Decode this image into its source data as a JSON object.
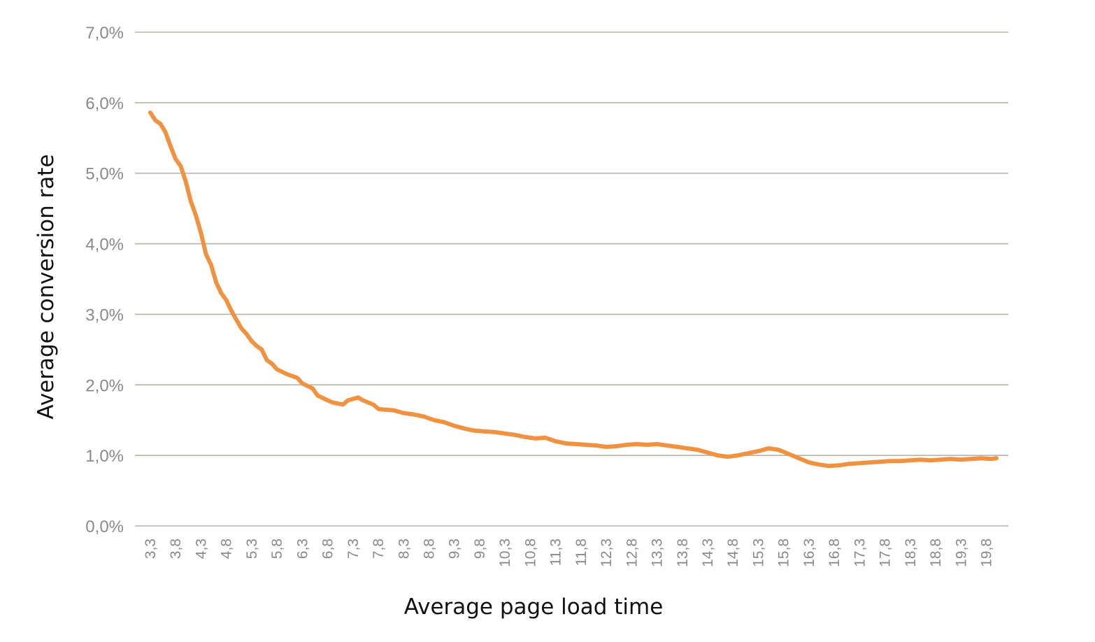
{
  "chart_data": {
    "type": "line",
    "xlabel": "Average page load time",
    "ylabel": "Average conversion rate",
    "ylim": [
      0,
      7
    ],
    "yticks": [
      "0,0%",
      "1,0%",
      "2,0%",
      "3,0%",
      "4,0%",
      "5,0%",
      "6,0%",
      "7,0%"
    ],
    "xticks": [
      "3,3",
      "3,8",
      "4,3",
      "4,8",
      "5,3",
      "5,8",
      "6,3",
      "6,8",
      "7,3",
      "7,8",
      "8,3",
      "8,8",
      "9,3",
      "9,8",
      "10,3",
      "10,8",
      "11,3",
      "11,8",
      "12,3",
      "12,8",
      "13,3",
      "13,8",
      "14,3",
      "14,8",
      "15,3",
      "15,8",
      "16,3",
      "16,8",
      "17,3",
      "17,8",
      "18,3",
      "18,8",
      "19,3",
      "19,8"
    ],
    "xlim": [
      3.3,
      20.0
    ],
    "grid": true,
    "legend": "none",
    "colors": {
      "line": "#f0923f",
      "grid": "#b9b3ab",
      "tick_text": "#8a8a8a",
      "axis_title": "#111111"
    },
    "series": [
      {
        "x": [
          3.3,
          3.4,
          3.5,
          3.6,
          3.7,
          3.8,
          3.9,
          4.0,
          4.1,
          4.2,
          4.3,
          4.4,
          4.5,
          4.6,
          4.7,
          4.8,
          4.9,
          5.0,
          5.1,
          5.2,
          5.3,
          5.4,
          5.5,
          5.6,
          5.7,
          5.8,
          6.0,
          6.2,
          6.3,
          6.5,
          6.6,
          6.8,
          6.9,
          7.1,
          7.2,
          7.4,
          7.5,
          7.7,
          7.8,
          7.9,
          8.1,
          8.3,
          8.5,
          8.7,
          8.9,
          9.1,
          9.3,
          9.5,
          9.7,
          9.9,
          10.1,
          10.3,
          10.5,
          10.7,
          10.9,
          11.1,
          11.3,
          11.5,
          11.7,
          11.9,
          12.1,
          12.3,
          12.5,
          12.7,
          12.9,
          13.1,
          13.3,
          13.5,
          13.7,
          13.9,
          14.1,
          14.3,
          14.5,
          14.7,
          14.9,
          15.1,
          15.3,
          15.5,
          15.7,
          15.9,
          16.1,
          16.3,
          16.5,
          16.7,
          16.9,
          17.1,
          17.3,
          17.5,
          17.7,
          17.9,
          18.1,
          18.3,
          18.5,
          18.7,
          18.9,
          19.1,
          19.3,
          19.5,
          19.7,
          19.9,
          20.0
        ],
        "y": [
          5.86,
          5.75,
          5.7,
          5.58,
          5.38,
          5.2,
          5.1,
          4.88,
          4.6,
          4.4,
          4.15,
          3.85,
          3.7,
          3.45,
          3.3,
          3.2,
          3.05,
          2.92,
          2.8,
          2.72,
          2.62,
          2.55,
          2.5,
          2.35,
          2.3,
          2.22,
          2.15,
          2.1,
          2.02,
          1.95,
          1.85,
          1.78,
          1.75,
          1.72,
          1.78,
          1.82,
          1.78,
          1.72,
          1.66,
          1.65,
          1.64,
          1.6,
          1.58,
          1.55,
          1.5,
          1.47,
          1.42,
          1.38,
          1.35,
          1.34,
          1.33,
          1.31,
          1.29,
          1.26,
          1.24,
          1.25,
          1.2,
          1.17,
          1.16,
          1.15,
          1.14,
          1.12,
          1.13,
          1.15,
          1.16,
          1.15,
          1.16,
          1.14,
          1.12,
          1.1,
          1.08,
          1.04,
          1.0,
          0.98,
          1.0,
          1.03,
          1.06,
          1.1,
          1.08,
          1.02,
          0.96,
          0.9,
          0.87,
          0.85,
          0.86,
          0.88,
          0.89,
          0.9,
          0.91,
          0.92,
          0.92,
          0.93,
          0.94,
          0.93,
          0.94,
          0.95,
          0.94,
          0.95,
          0.96,
          0.95,
          0.96
        ]
      }
    ]
  }
}
